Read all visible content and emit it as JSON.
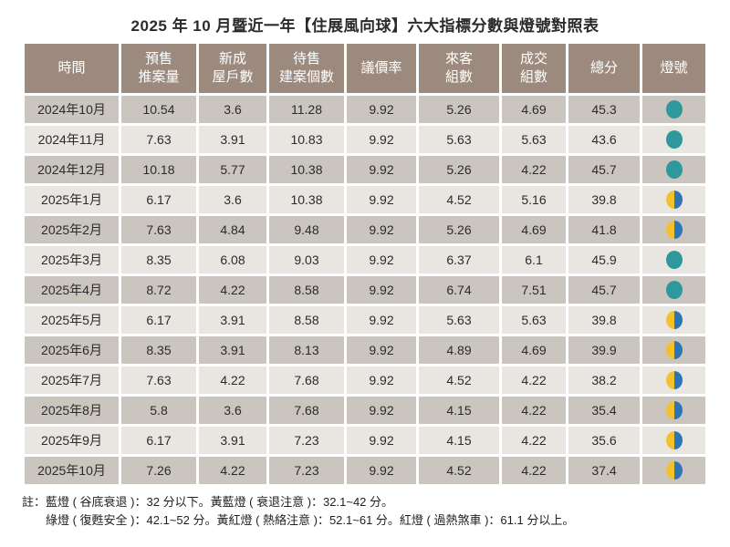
{
  "title": "2025 年 10 月暨近一年【住展風向球】六大指標分數與燈號對照表",
  "table": {
    "header_lines": [
      [
        "時間"
      ],
      [
        "預售",
        "推案量"
      ],
      [
        "新成",
        "屋戶數"
      ],
      [
        "待售",
        "建案個數"
      ],
      [
        "議價率"
      ],
      [
        "來客",
        "組數"
      ],
      [
        "成交",
        "組數"
      ],
      [
        "總分"
      ],
      [
        "燈號"
      ]
    ]
  },
  "notes": {
    "line1": "註：藍燈 ( 谷底衰退 )：32 分以下。黃藍燈 ( 衰退注意 )：32.1~42 分。",
    "line2": "綠燈 ( 復甦安全 )：42.1~52 分。黃紅燈 ( 熱絡注意 )：52.1~61 分。紅燈 ( 過熱煞車 )：61.1 分以上。"
  },
  "colors": {
    "header_bg": "#9c8a7e",
    "row_odd_bg": "#cbc5bf",
    "row_even_bg": "#e9e6e2",
    "green_light": "#2e989c",
    "yellow_light": "#f1c12f",
    "blue_light": "#2c76b7"
  },
  "chart_data": {
    "type": "table",
    "title": "2025 年 10 月暨近一年【住展風向球】六大指標分數與燈號對照表",
    "columns": [
      "時間",
      "預售推案量",
      "新成屋戶數",
      "待售建案個數",
      "議價率",
      "來客組數",
      "成交組數",
      "總分",
      "燈號"
    ],
    "rows": [
      [
        "2024年10月",
        10.54,
        3.6,
        11.28,
        9.92,
        5.26,
        4.69,
        45.3,
        "綠燈"
      ],
      [
        "2024年11月",
        7.63,
        3.91,
        10.83,
        9.92,
        5.63,
        5.63,
        43.6,
        "綠燈"
      ],
      [
        "2024年12月",
        10.18,
        5.77,
        10.38,
        9.92,
        5.26,
        4.22,
        45.7,
        "綠燈"
      ],
      [
        "2025年1月",
        6.17,
        3.6,
        10.38,
        9.92,
        4.52,
        5.16,
        39.8,
        "黃藍燈"
      ],
      [
        "2025年2月",
        7.63,
        4.84,
        9.48,
        9.92,
        5.26,
        4.69,
        41.8,
        "黃藍燈"
      ],
      [
        "2025年3月",
        8.35,
        6.08,
        9.03,
        9.92,
        6.37,
        6.1,
        45.9,
        "綠燈"
      ],
      [
        "2025年4月",
        8.72,
        4.22,
        8.58,
        9.92,
        6.74,
        7.51,
        45.7,
        "綠燈"
      ],
      [
        "2025年5月",
        6.17,
        3.91,
        8.58,
        9.92,
        5.63,
        5.63,
        39.8,
        "黃藍燈"
      ],
      [
        "2025年6月",
        8.35,
        3.91,
        8.13,
        9.92,
        4.89,
        4.69,
        39.9,
        "黃藍燈"
      ],
      [
        "2025年7月",
        7.63,
        4.22,
        7.68,
        9.92,
        4.52,
        4.22,
        38.2,
        "黃藍燈"
      ],
      [
        "2025年8月",
        5.8,
        3.6,
        7.68,
        9.92,
        4.15,
        4.22,
        35.4,
        "黃藍燈"
      ],
      [
        "2025年9月",
        6.17,
        3.91,
        7.23,
        9.92,
        4.15,
        4.22,
        35.6,
        "黃藍燈"
      ],
      [
        "2025年10月",
        7.26,
        4.22,
        7.23,
        9.92,
        4.52,
        4.22,
        37.4,
        "黃藍燈"
      ]
    ],
    "legend": {
      "藍燈": "谷底衰退：32 分以下",
      "黃藍燈": "衰退注意：32.1~42 分",
      "綠燈": "復甦安全：42.1~52 分",
      "黃紅燈": "熱絡注意：52.1~61 分",
      "紅燈": "過熱煞車：61.1 分以上"
    },
    "notes": [
      "註：藍燈 ( 谷底衰退 )：32 分以下。黃藍燈 ( 衰退注意 )：32.1~42 分。",
      "綠燈 ( 復甦安全 )：42.1~52 分。黃紅燈 ( 熱絡注意 )：52.1~61 分。紅燈 ( 過熱煞車 )：61.1 分以上。"
    ]
  }
}
